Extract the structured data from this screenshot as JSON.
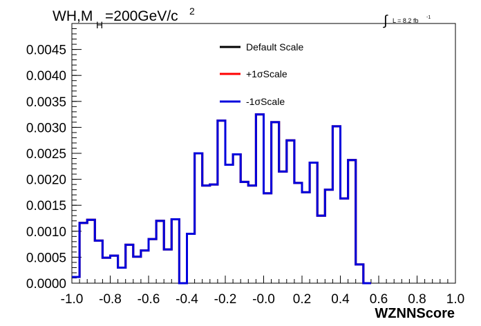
{
  "chart_data": {
    "type": "line",
    "style": "step-histogram",
    "title_main": "WH,M",
    "title_sub": "H",
    "title_rest": "=200GeV/c",
    "title_sup": "2",
    "lumi_integral": "∫",
    "lumi_label": "L = 8.2 fb",
    "lumi_sup": "-1",
    "xlabel": "WZNNScore",
    "ylabel": "",
    "xlim": [
      -1.0,
      1.0
    ],
    "ylim": [
      0.0,
      0.005
    ],
    "x_ticks": [
      "-1.0",
      "-0.8",
      "-0.6",
      "-0.4",
      "-0.2",
      "-0.0",
      "0.2",
      "0.4",
      "0.6",
      "0.8",
      "1.0"
    ],
    "x_tick_values": [
      -1.0,
      -0.8,
      -0.6,
      -0.4,
      -0.2,
      0.0,
      0.2,
      0.4,
      0.6,
      0.8,
      1.0
    ],
    "y_ticks": [
      "0.0000",
      "0.0005",
      "0.0010",
      "0.0015",
      "0.0020",
      "0.0025",
      "0.0030",
      "0.0035",
      "0.0040",
      "0.0045"
    ],
    "y_tick_values": [
      0.0,
      0.0005,
      0.001,
      0.0015,
      0.002,
      0.0025,
      0.003,
      0.0035,
      0.004,
      0.0045
    ],
    "bin_edges_start": -1.0,
    "bin_width": 0.04,
    "legend_position": "top-center",
    "series": [
      {
        "name": "Default Scale",
        "color": "#000000",
        "values": [
          0.00012,
          0.00116,
          0.00122,
          0.00082,
          0.00049,
          0.00053,
          0.0003,
          0.00074,
          0.00051,
          0.00063,
          0.00085,
          0.0012,
          0.00065,
          0.00123,
          0.0,
          0.00095,
          0.0025,
          0.00188,
          0.0019,
          0.00313,
          0.00228,
          0.00248,
          0.00195,
          0.00188,
          0.00325,
          0.00173,
          0.0031,
          0.00215,
          0.00275,
          0.00193,
          0.00175,
          0.00232,
          0.0013,
          0.0018,
          0.00302,
          0.00163,
          0.00237,
          0.00036,
          0.0
        ]
      },
      {
        "name": "+1σScale",
        "color": "#ff0000",
        "values": [
          0.00012,
          0.00116,
          0.00122,
          0.00082,
          0.00049,
          0.00053,
          0.0003,
          0.00074,
          0.00051,
          0.00063,
          0.00085,
          0.0012,
          0.00065,
          0.00123,
          0.0,
          0.00095,
          0.0025,
          0.00188,
          0.0019,
          0.00313,
          0.00228,
          0.00248,
          0.00195,
          0.00188,
          0.00325,
          0.00173,
          0.0031,
          0.00215,
          0.00275,
          0.00193,
          0.00175,
          0.00232,
          0.0013,
          0.0018,
          0.00302,
          0.00163,
          0.00237,
          0.00036,
          0.0
        ]
      },
      {
        "name": "-1σScale",
        "color": "#0000dd",
        "values": [
          0.00012,
          0.00116,
          0.00122,
          0.00082,
          0.00049,
          0.00053,
          0.0003,
          0.00074,
          0.00051,
          0.00063,
          0.00085,
          0.0012,
          0.00065,
          0.00123,
          0.0,
          0.00095,
          0.0025,
          0.00188,
          0.0019,
          0.00313,
          0.00228,
          0.00248,
          0.00195,
          0.00188,
          0.00325,
          0.00173,
          0.0031,
          0.00215,
          0.00275,
          0.00193,
          0.00175,
          0.00232,
          0.0013,
          0.0018,
          0.00302,
          0.00163,
          0.00237,
          0.00036,
          0.0
        ]
      }
    ]
  }
}
